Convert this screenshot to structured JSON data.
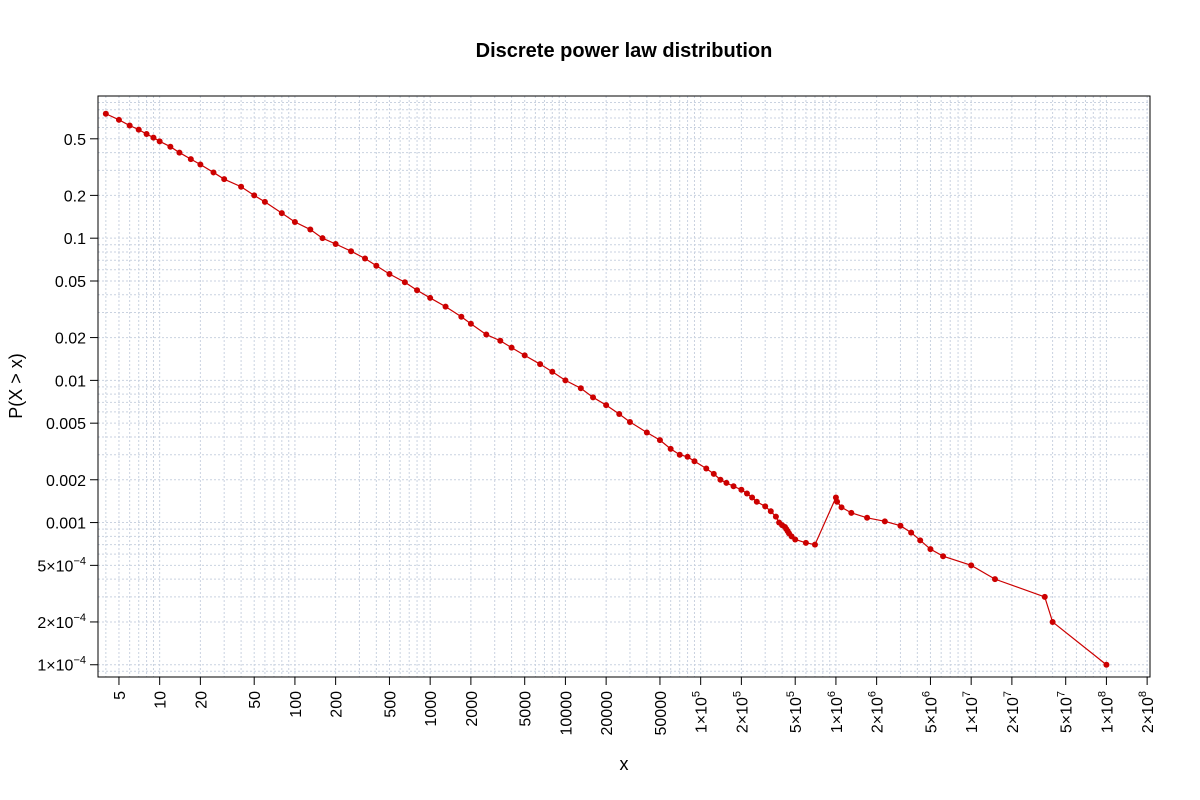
{
  "chart_data": {
    "type": "scatter",
    "title": "Discrete power law distribution",
    "xlabel": "x",
    "ylabel": "P(X > x)",
    "x_scale": "log",
    "y_scale": "log",
    "xlim": [
      3.5,
      210000000
    ],
    "ylim": [
      8.2e-05,
      1.0
    ],
    "grid": true,
    "colors": {
      "points": "#cc0000",
      "grid": "#c9d2e0",
      "frame": "#000000"
    },
    "x_ticks": [
      {
        "value": 5,
        "label": "5"
      },
      {
        "value": 10,
        "label": "10"
      },
      {
        "value": 20,
        "label": "20"
      },
      {
        "value": 50,
        "label": "50"
      },
      {
        "value": 100,
        "label": "100"
      },
      {
        "value": 200,
        "label": "200"
      },
      {
        "value": 500,
        "label": "500"
      },
      {
        "value": 1000,
        "label": "1000"
      },
      {
        "value": 2000,
        "label": "2000"
      },
      {
        "value": 5000,
        "label": "5000"
      },
      {
        "value": 10000,
        "label": "10000"
      },
      {
        "value": 20000,
        "label": "20000"
      },
      {
        "value": 50000,
        "label": "50000"
      },
      {
        "value": 100000,
        "label": "1×10",
        "exp": "5"
      },
      {
        "value": 200000,
        "label": "2×10",
        "exp": "5"
      },
      {
        "value": 500000,
        "label": "5×10",
        "exp": "5"
      },
      {
        "value": 1000000,
        "label": "1×10",
        "exp": "6"
      },
      {
        "value": 2000000,
        "label": "2×10",
        "exp": "6"
      },
      {
        "value": 5000000,
        "label": "5×10",
        "exp": "6"
      },
      {
        "value": 10000000,
        "label": "1×10",
        "exp": "7"
      },
      {
        "value": 20000000,
        "label": "2×10",
        "exp": "7"
      },
      {
        "value": 50000000,
        "label": "5×10",
        "exp": "7"
      },
      {
        "value": 100000000,
        "label": "1×10",
        "exp": "8"
      },
      {
        "value": 200000000,
        "label": "2×10",
        "exp": "8"
      }
    ],
    "y_ticks": [
      {
        "value": 0.5,
        "label": "0.5"
      },
      {
        "value": 0.2,
        "label": "0.2"
      },
      {
        "value": 0.1,
        "label": "0.1"
      },
      {
        "value": 0.05,
        "label": "0.05"
      },
      {
        "value": 0.02,
        "label": "0.02"
      },
      {
        "value": 0.01,
        "label": "0.01"
      },
      {
        "value": 0.005,
        "label": "0.005"
      },
      {
        "value": 0.002,
        "label": "0.002"
      },
      {
        "value": 0.001,
        "label": "0.001"
      },
      {
        "value": 0.0005,
        "label": "5×10",
        "exp": "−4"
      },
      {
        "value": 0.0002,
        "label": "2×10",
        "exp": "−4"
      },
      {
        "value": 0.0001,
        "label": "1×10",
        "exp": "−4"
      }
    ],
    "series": [
      {
        "x": [
          4,
          5,
          6,
          7,
          8,
          9,
          10,
          12,
          14,
          17,
          20,
          25,
          30,
          40,
          50,
          60,
          80,
          100,
          130,
          160,
          200,
          260,
          330,
          400,
          500,
          650,
          800,
          1000,
          1300,
          1700,
          2000,
          2600,
          3300,
          4000,
          5000,
          6500,
          8000,
          10000,
          13000,
          16000,
          20000,
          25000,
          30000,
          40000,
          50000,
          60000,
          70000,
          80000,
          90000,
          110000,
          125000,
          140000,
          155000,
          175000,
          200000,
          220000,
          240000,
          260000,
          300000,
          330000,
          360000,
          380000,
          400000,
          420000,
          430000,
          440000,
          450000,
          470000,
          500000,
          600000,
          700000,
          1000000,
          1020000,
          1100000,
          1300000,
          1700000,
          2300000,
          3000000,
          3600000,
          4200000,
          5000000,
          6200000,
          10000000,
          15000000,
          35000000,
          40000000,
          100000000
        ],
        "y": [
          0.75,
          0.68,
          0.62,
          0.58,
          0.54,
          0.51,
          0.48,
          0.44,
          0.4,
          0.36,
          0.33,
          0.29,
          0.26,
          0.23,
          0.2,
          0.18,
          0.15,
          0.13,
          0.115,
          0.1,
          0.091,
          0.081,
          0.072,
          0.064,
          0.056,
          0.049,
          0.043,
          0.038,
          0.033,
          0.028,
          0.025,
          0.021,
          0.019,
          0.017,
          0.015,
          0.013,
          0.0115,
          0.01,
          0.0088,
          0.0076,
          0.0067,
          0.0058,
          0.0051,
          0.0043,
          0.0038,
          0.0033,
          0.003,
          0.0029,
          0.0027,
          0.0024,
          0.0022,
          0.002,
          0.0019,
          0.0018,
          0.0017,
          0.0016,
          0.0015,
          0.0014,
          0.0013,
          0.0012,
          0.0011,
          0.001,
          0.00096,
          0.00093,
          0.0009,
          0.00087,
          0.00084,
          0.0008,
          0.00076,
          0.00072,
          0.0007,
          0.0015,
          0.0014,
          0.00128,
          0.00117,
          0.00108,
          0.00102,
          0.00095,
          0.00085,
          0.00075,
          0.00065,
          0.00058,
          0.0005,
          0.0004,
          0.0003,
          0.0002,
          0.0001
        ]
      }
    ]
  }
}
